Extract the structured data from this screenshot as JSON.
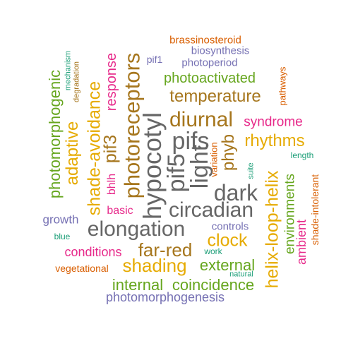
{
  "palette": {
    "teal": "#1b9e77",
    "orange": "#d95f02",
    "purple": "#7570b3",
    "magenta": "#e7298a",
    "green": "#66a61e",
    "gold": "#e6ab02",
    "brown": "#a6761d",
    "gray": "#666666"
  },
  "words": [
    {
      "text": "brassinosteroid",
      "color": "#d95f02"
    },
    {
      "text": "biosynthesis",
      "color": "#7570b3"
    },
    {
      "text": "pif1",
      "color": "#7570b3"
    },
    {
      "text": "photoperiod",
      "color": "#7570b3"
    },
    {
      "text": "pathways",
      "color": "#d95f02"
    },
    {
      "text": "mechanism",
      "color": "#1b9e77"
    },
    {
      "text": "degradation",
      "color": "#a6761d"
    },
    {
      "text": "photoactivated",
      "color": "#66a61e"
    },
    {
      "text": "temperature",
      "color": "#a6761d"
    },
    {
      "text": "photomorphogenic",
      "color": "#66a61e"
    },
    {
      "text": "adaptive",
      "color": "#e6ab02"
    },
    {
      "text": "response",
      "color": "#e7298a"
    },
    {
      "text": "photoreceptors",
      "color": "#a6761d"
    },
    {
      "text": "shade-avoidance",
      "color": "#e6ab02"
    },
    {
      "text": "pif3",
      "color": "#a6761d"
    },
    {
      "text": "bhlh",
      "color": "#e7298a"
    },
    {
      "text": "hypocotyl",
      "color": "#666666"
    },
    {
      "text": "diurnal",
      "color": "#a6761d"
    },
    {
      "text": "pifs",
      "color": "#666666"
    },
    {
      "text": "pif5",
      "color": "#666666"
    },
    {
      "text": "light",
      "color": "#666666"
    },
    {
      "text": "syndrome",
      "color": "#e7298a"
    },
    {
      "text": "rhythms",
      "color": "#e6ab02"
    },
    {
      "text": "phyb",
      "color": "#a6761d"
    },
    {
      "text": "variation",
      "color": "#d95f02"
    },
    {
      "text": "length",
      "color": "#1b9e77"
    },
    {
      "text": "suite",
      "color": "#1b9e77"
    },
    {
      "text": "dark",
      "color": "#666666"
    },
    {
      "text": "helix-loop-helix",
      "color": "#e6ab02"
    },
    {
      "text": "environments",
      "color": "#66a61e"
    },
    {
      "text": "shade-intolerant",
      "color": "#d95f02"
    },
    {
      "text": "ambient",
      "color": "#e7298a"
    },
    {
      "text": "basic",
      "color": "#e7298a"
    },
    {
      "text": "circadian",
      "color": "#666666"
    },
    {
      "text": "growth",
      "color": "#7570b3"
    },
    {
      "text": "elongation",
      "color": "#666666"
    },
    {
      "text": "controls",
      "color": "#7570b3"
    },
    {
      "text": "blue",
      "color": "#1b9e77"
    },
    {
      "text": "clock",
      "color": "#e6ab02"
    },
    {
      "text": "far-red",
      "color": "#a6761d"
    },
    {
      "text": "conditions",
      "color": "#e7298a"
    },
    {
      "text": "work",
      "color": "#1b9e77"
    },
    {
      "text": "shading",
      "color": "#e6ab02"
    },
    {
      "text": "external",
      "color": "#66a61e"
    },
    {
      "text": "vegetational",
      "color": "#d95f02"
    },
    {
      "text": "natural",
      "color": "#1b9e77"
    },
    {
      "text": "internal",
      "color": "#66a61e"
    },
    {
      "text": "coincidence",
      "color": "#66a61e"
    },
    {
      "text": "photomorphogenesis",
      "color": "#7570b3"
    }
  ]
}
